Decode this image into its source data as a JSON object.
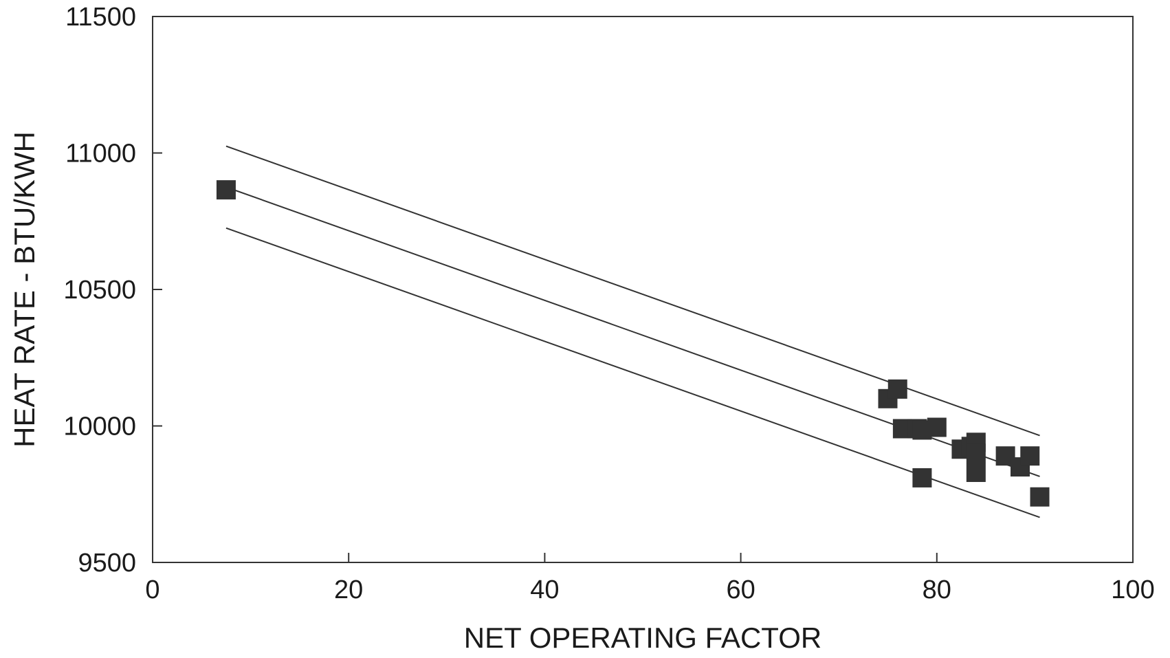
{
  "chart_data": {
    "type": "scatter",
    "title": "",
    "xlabel": "NET OPERATING FACTOR",
    "ylabel": "HEAT RATE - BTU/KWH",
    "xlim": [
      0,
      100
    ],
    "ylim": [
      9500,
      11500
    ],
    "xticks": [
      0,
      20,
      40,
      60,
      80,
      100
    ],
    "yticks": [
      9500,
      10000,
      10500,
      11000,
      11500
    ],
    "grid": false,
    "legend": "none",
    "series": [
      {
        "marker": "square",
        "color": "#333333",
        "points": [
          {
            "x": 7.5,
            "y": 10865
          },
          {
            "x": 75.0,
            "y": 10100
          },
          {
            "x": 76.0,
            "y": 10135
          },
          {
            "x": 76.5,
            "y": 9990
          },
          {
            "x": 78.0,
            "y": 9990
          },
          {
            "x": 78.5,
            "y": 9985
          },
          {
            "x": 80.0,
            "y": 9995
          },
          {
            "x": 78.5,
            "y": 9810
          },
          {
            "x": 82.5,
            "y": 9915
          },
          {
            "x": 83.5,
            "y": 9925
          },
          {
            "x": 84.0,
            "y": 9940
          },
          {
            "x": 84.0,
            "y": 9900
          },
          {
            "x": 84.0,
            "y": 9830
          },
          {
            "x": 87.0,
            "y": 9890
          },
          {
            "x": 88.5,
            "y": 9850
          },
          {
            "x": 89.5,
            "y": 9890
          },
          {
            "x": 90.5,
            "y": 9740
          }
        ]
      }
    ],
    "lines": [
      {
        "role": "upper-bound",
        "color": "#333333",
        "x": [
          7.5,
          90.5
        ],
        "y": [
          11025,
          9965
        ]
      },
      {
        "role": "regression",
        "color": "#333333",
        "x": [
          7.5,
          90.5
        ],
        "y": [
          10875,
          9815
        ]
      },
      {
        "role": "lower-bound",
        "color": "#333333",
        "x": [
          7.5,
          90.5
        ],
        "y": [
          10725,
          9665
        ]
      }
    ]
  }
}
